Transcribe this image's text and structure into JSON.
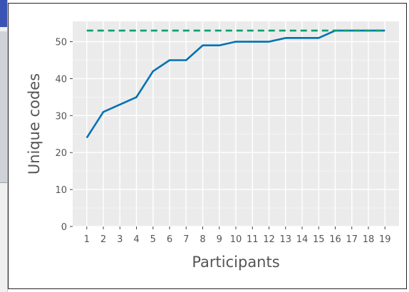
{
  "chart_data": {
    "type": "line",
    "x": [
      1,
      2,
      3,
      4,
      5,
      6,
      7,
      8,
      9,
      10,
      11,
      12,
      13,
      14,
      15,
      16,
      17,
      18,
      19
    ],
    "series": [
      {
        "values": [
          24,
          31,
          33,
          35,
          42,
          45,
          45,
          49,
          49,
          50,
          50,
          50,
          51,
          51,
          51,
          53,
          53,
          53,
          53
        ],
        "color": "#0072b2",
        "style": "solid"
      },
      {
        "values": [
          53,
          53,
          53,
          53,
          53,
          53,
          53,
          53,
          53,
          53,
          53,
          53,
          53,
          53,
          53,
          53,
          53,
          53,
          53
        ],
        "color": "#009e73",
        "style": "dashed"
      }
    ],
    "xlabel": "Participants",
    "ylabel": "Unique codes",
    "xlim": [
      0.15,
      19.85
    ],
    "ylim": [
      0,
      55.5
    ],
    "yticks": [
      0,
      10,
      20,
      30,
      40,
      50
    ],
    "xticks": [
      1,
      2,
      3,
      4,
      5,
      6,
      7,
      8,
      9,
      10,
      11,
      12,
      13,
      14,
      15,
      16,
      17,
      18,
      19
    ],
    "grid": true,
    "background": "#ebebeb"
  }
}
